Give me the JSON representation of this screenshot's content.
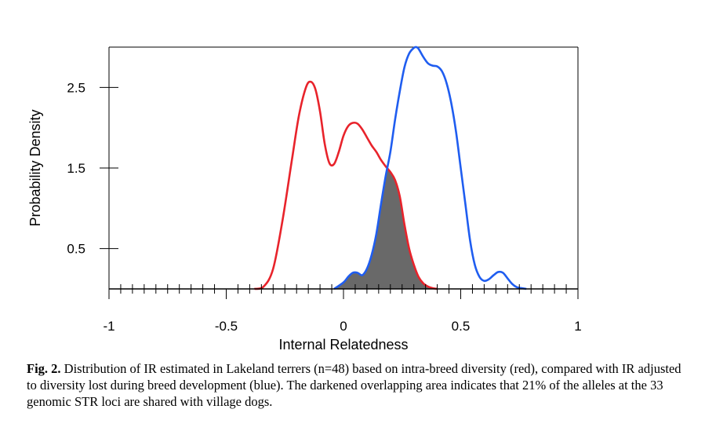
{
  "chart_data": {
    "type": "area",
    "xlabel": "Internal Relatedness",
    "ylabel": "Probability Density",
    "xlim": [
      -1,
      1
    ],
    "ylim": [
      0,
      3.0
    ],
    "x_ticks": [
      "-1",
      "-0.5",
      "0",
      "0.5",
      "1"
    ],
    "y_ticks": [
      "0.5",
      "1.5",
      "2.5"
    ],
    "grid": false,
    "series": [
      {
        "color": "#e8232b",
        "x": [
          -0.38,
          -0.34,
          -0.3,
          -0.26,
          -0.22,
          -0.19,
          -0.16,
          -0.14,
          -0.12,
          -0.1,
          -0.08,
          -0.06,
          -0.04,
          -0.02,
          0.0,
          0.02,
          0.04,
          0.06,
          0.08,
          0.1,
          0.12,
          0.14,
          0.16,
          0.18,
          0.2,
          0.22,
          0.24,
          0.26,
          0.28,
          0.3,
          0.32,
          0.34,
          0.36,
          0.38,
          0.4
        ],
        "y": [
          0.0,
          0.03,
          0.25,
          0.85,
          1.6,
          2.15,
          2.5,
          2.57,
          2.48,
          2.2,
          1.8,
          1.56,
          1.55,
          1.7,
          1.9,
          2.02,
          2.06,
          2.05,
          1.98,
          1.88,
          1.78,
          1.7,
          1.6,
          1.52,
          1.45,
          1.35,
          1.15,
          0.8,
          0.5,
          0.3,
          0.15,
          0.07,
          0.03,
          0.01,
          0.0
        ]
      },
      {
        "color": "#1f5df0",
        "x": [
          -0.04,
          0.0,
          0.02,
          0.04,
          0.06,
          0.08,
          0.1,
          0.12,
          0.14,
          0.16,
          0.18,
          0.2,
          0.22,
          0.24,
          0.26,
          0.28,
          0.3,
          0.31,
          0.32,
          0.34,
          0.36,
          0.38,
          0.4,
          0.42,
          0.44,
          0.46,
          0.48,
          0.5,
          0.52,
          0.54,
          0.56,
          0.58,
          0.6,
          0.62,
          0.64,
          0.66,
          0.68,
          0.7,
          0.72,
          0.74,
          0.76,
          0.78
        ],
        "y": [
          0.0,
          0.08,
          0.15,
          0.2,
          0.2,
          0.17,
          0.25,
          0.42,
          0.68,
          1.05,
          1.4,
          1.7,
          2.1,
          2.45,
          2.75,
          2.92,
          2.99,
          3.0,
          2.98,
          2.88,
          2.8,
          2.77,
          2.76,
          2.7,
          2.55,
          2.3,
          1.95,
          1.5,
          1.05,
          0.6,
          0.3,
          0.15,
          0.1,
          0.12,
          0.17,
          0.21,
          0.2,
          0.13,
          0.06,
          0.02,
          0.01,
          0.0
        ]
      }
    ],
    "overlap_fill": "#696969"
  },
  "caption": {
    "label": "Fig. 2.",
    "text": " Distribution of IR estimated in Lakeland terrers (n=48) based on intra-breed diversity (red), compared with IR adjusted to diversity lost during breed development (blue). The darkened overlapping area indicates that 21% of the alleles at the 33 genomic STR loci are shared with village dogs."
  }
}
